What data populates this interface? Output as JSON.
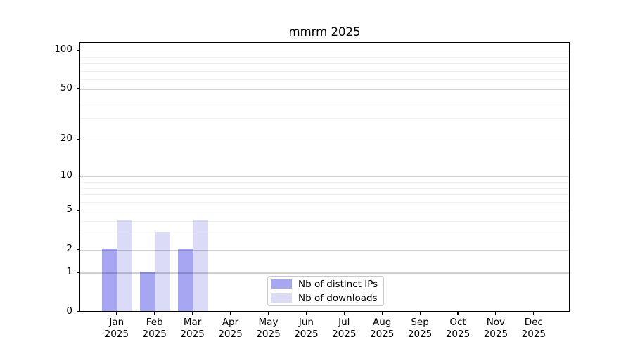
{
  "figure": {
    "title": "mmrm 2025"
  },
  "chart_data": {
    "type": "bar",
    "title": "mmrm 2025",
    "x_categories": [
      {
        "month": "Jan",
        "year": "2025"
      },
      {
        "month": "Feb",
        "year": "2025"
      },
      {
        "month": "Mar",
        "year": "2025"
      },
      {
        "month": "Apr",
        "year": "2025"
      },
      {
        "month": "May",
        "year": "2025"
      },
      {
        "month": "Jun",
        "year": "2025"
      },
      {
        "month": "Jul",
        "year": "2025"
      },
      {
        "month": "Aug",
        "year": "2025"
      },
      {
        "month": "Sep",
        "year": "2025"
      },
      {
        "month": "Oct",
        "year": "2025"
      },
      {
        "month": "Nov",
        "year": "2025"
      },
      {
        "month": "Dec",
        "year": "2025"
      }
    ],
    "series": [
      {
        "name": "Nb of distinct IPs",
        "color": "#a6a6f2",
        "values": [
          2,
          1,
          2,
          0,
          0,
          0,
          0,
          0,
          0,
          0,
          0,
          0
        ]
      },
      {
        "name": "Nb of downloads",
        "color": "#dbdbf8",
        "values": [
          4,
          3,
          4,
          0,
          0,
          0,
          0,
          0,
          0,
          0,
          0,
          0
        ]
      }
    ],
    "y_axis": {
      "scale": "log1p",
      "major_ticks": [
        0,
        1,
        2,
        5,
        10,
        20,
        50,
        100
      ],
      "minor_gridlines": [
        3,
        4,
        6,
        7,
        8,
        9,
        30,
        40,
        60,
        70,
        80,
        90
      ],
      "top_value": 115
    },
    "xlabel": "",
    "ylabel": "",
    "grid": true,
    "legend_position": "lower center"
  },
  "colors": {
    "bar_distinct_ips": "#a6a6f2",
    "bar_downloads": "#dbdbf8",
    "spine": "#000000",
    "grid_major": "rgba(0,0,0,0.18)",
    "grid_minor": "rgba(0,0,0,0.055)",
    "legend_border": "#c8c8c8",
    "tick_label": "#000000"
  }
}
